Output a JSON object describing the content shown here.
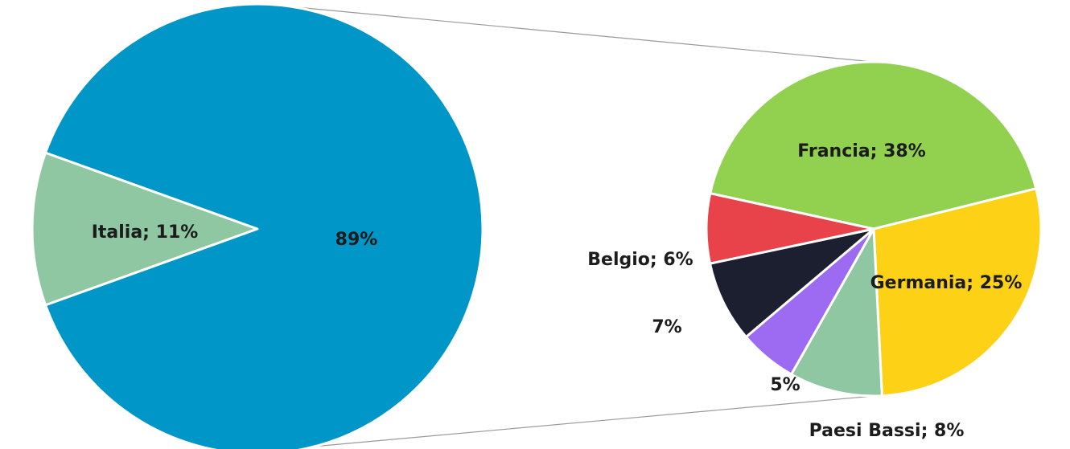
{
  "chart_data": [
    {
      "type": "pie",
      "categories": [
        "Italia",
        ""
      ],
      "values": [
        11,
        89
      ],
      "data_labels": [
        "Italia; 11%",
        "89%"
      ],
      "colors": [
        "#8ec7a1",
        "#0096c7"
      ]
    },
    {
      "type": "pie",
      "categories": [
        "Francia",
        "Germania",
        "Paesi Bassi",
        "",
        "",
        "Belgio"
      ],
      "values": [
        38,
        25,
        8,
        5,
        7,
        6
      ],
      "data_labels": [
        "Francia; 38%",
        "Germania; 25%",
        "Paesi Bassi; 8%",
        "5%",
        "7%",
        "Belgio; 6%"
      ],
      "colors": [
        "#92d050",
        "#fdd116",
        "#8ec7a1",
        "#9c6bf1",
        "#1b1f30",
        "#e8434b"
      ]
    }
  ]
}
